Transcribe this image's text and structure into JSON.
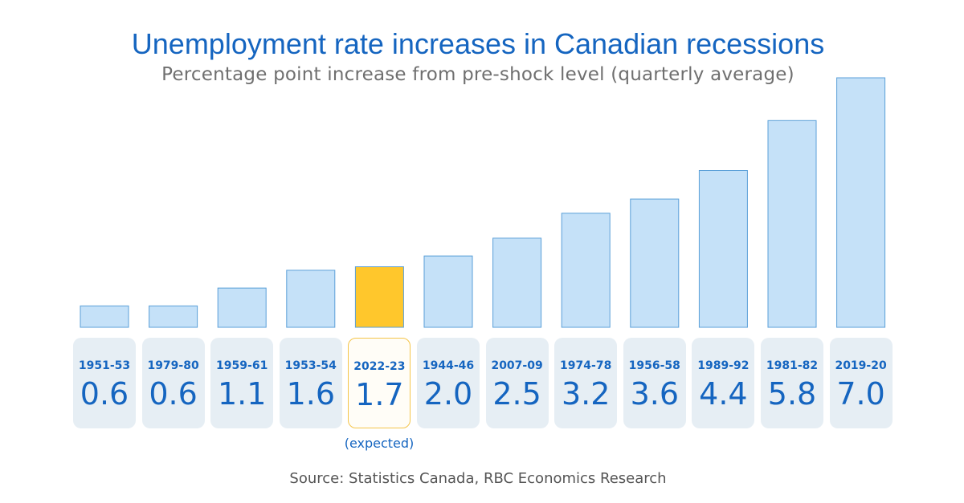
{
  "chart_data": {
    "type": "bar",
    "title": "Unemployment rate increases in Canadian recessions",
    "subtitle": "Percentage point increase from pre-shock level (quarterly average)",
    "categories": [
      "1951-53",
      "1979-80",
      "1959-61",
      "1953-54",
      "2022-23",
      "1944-46",
      "2007-09",
      "1974-78",
      "1956-58",
      "1989-92",
      "1981-82",
      "2019-20"
    ],
    "values": [
      0.6,
      0.6,
      1.1,
      1.6,
      1.7,
      2.0,
      2.5,
      3.2,
      3.6,
      4.4,
      5.8,
      7.0
    ],
    "value_labels": [
      "0.6",
      "0.6",
      "1.1",
      "1.6",
      "1.7",
      "2.0",
      "2.5",
      "3.2",
      "3.6",
      "4.4",
      "5.8",
      "7.0"
    ],
    "highlight_category": "2022-23",
    "highlight_note": "(expected)",
    "source": "Source: Statistics Canada, RBC Economics Research",
    "ylim": [
      0,
      7.0
    ],
    "grid": false,
    "legend": "none",
    "colors": {
      "bar": "#c5e1f8",
      "bar_border": "#5a9fd8",
      "highlight": "#ffc72c",
      "highlight_border": "#f0b000",
      "text": "#1565c0"
    }
  }
}
